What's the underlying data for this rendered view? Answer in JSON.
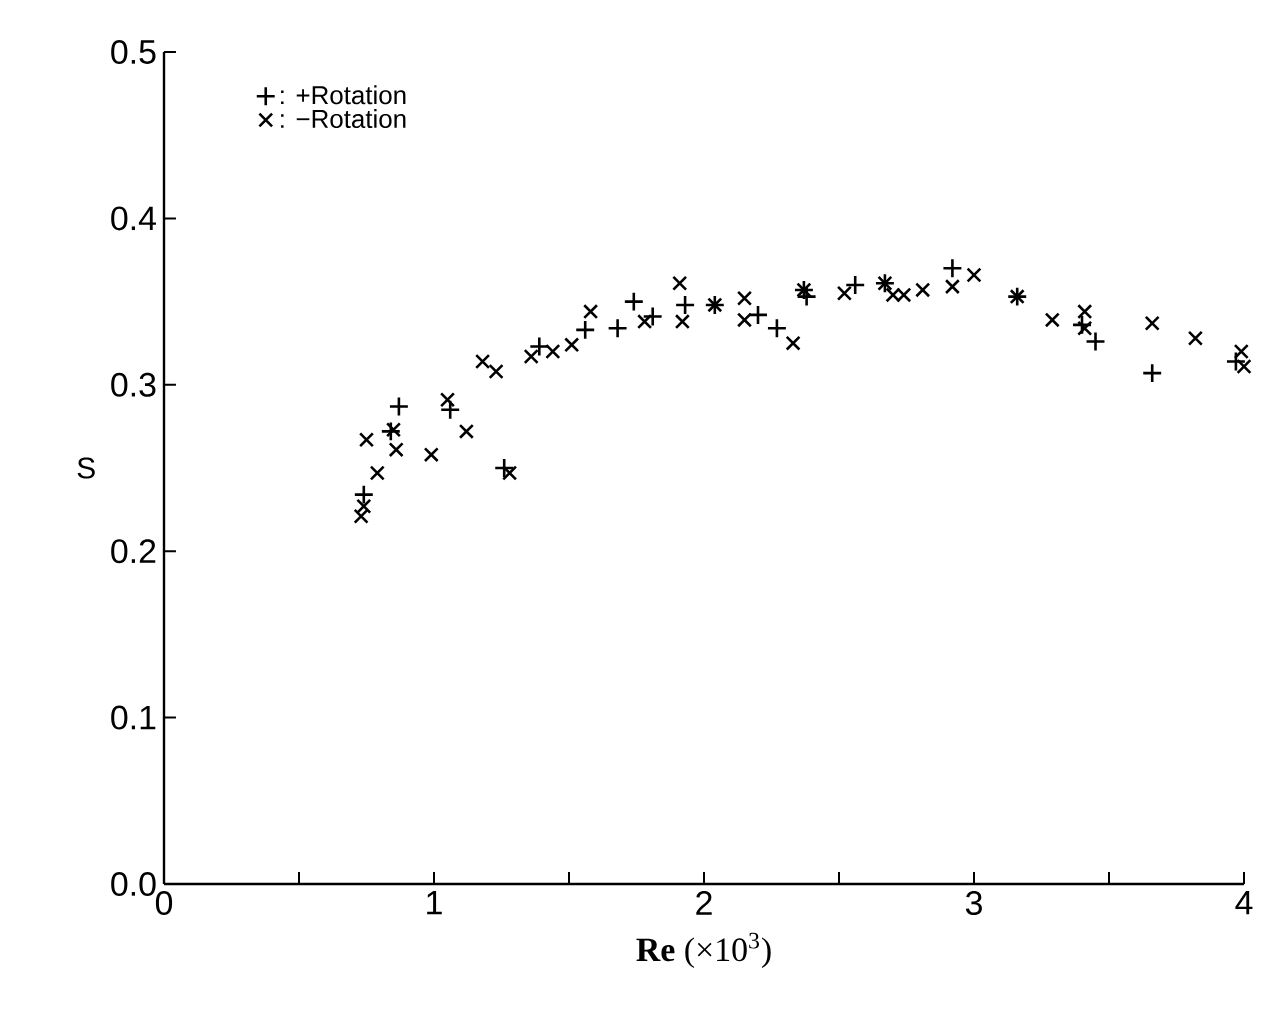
{
  "chart_data": {
    "type": "scatter",
    "xlabel": "**Re** (×10$^{3}$)",
    "ylabel": "S",
    "xlim": [
      0,
      4
    ],
    "ylim": [
      0,
      0.5
    ],
    "xticks": [
      0,
      {
        "value": 0.5,
        "label": null
      },
      1,
      {
        "value": 1.5,
        "label": null
      },
      2,
      {
        "value": 2.5,
        "label": null
      },
      3,
      {
        "value": 3.5,
        "label": null
      },
      4
    ],
    "yticks": [
      {
        "value": 0,
        "label": "0.0"
      },
      0.1,
      0.2,
      0.3,
      0.4,
      0.5
    ],
    "grid": false,
    "legend": "top left",
    "series": [
      {
        "name": ":  +Rotation",
        "color": "#000000",
        "marker": "plus",
        "x": [
          0.74,
          0.84,
          0.87,
          1.06,
          1.26,
          1.39,
          1.56,
          1.68,
          1.74,
          1.81,
          1.93,
          2.04,
          2.2,
          2.27,
          2.37,
          2.38,
          2.56,
          2.67,
          2.92,
          3.16,
          3.4,
          3.45,
          3.66,
          3.97
        ],
        "values": [
          0.234,
          0.272,
          0.287,
          0.285,
          0.25,
          0.323,
          0.333,
          0.334,
          0.35,
          0.341,
          0.348,
          0.348,
          0.342,
          0.334,
          0.357,
          0.353,
          0.36,
          0.361,
          0.37,
          0.353,
          0.336,
          0.326,
          0.307,
          0.314
        ]
      },
      {
        "name": ":  −Rotation",
        "color": "#000000",
        "marker": "cross",
        "x": [
          0.73,
          0.74,
          0.75,
          0.79,
          0.85,
          0.86,
          0.99,
          1.05,
          1.12,
          1.18,
          1.23,
          1.28,
          1.36,
          1.44,
          1.51,
          1.58,
          1.78,
          1.91,
          1.92,
          2.04,
          2.15,
          2.15,
          2.33,
          2.37,
          2.52,
          2.67,
          2.7,
          2.74,
          2.81,
          2.92,
          3.0,
          3.16,
          3.29,
          3.41,
          3.41,
          3.66,
          3.82,
          3.99,
          4.0
        ],
        "values": [
          0.221,
          0.227,
          0.267,
          0.247,
          0.273,
          0.261,
          0.258,
          0.291,
          0.272,
          0.314,
          0.308,
          0.247,
          0.317,
          0.32,
          0.324,
          0.344,
          0.338,
          0.361,
          0.338,
          0.348,
          0.352,
          0.339,
          0.325,
          0.357,
          0.355,
          0.361,
          0.354,
          0.354,
          0.357,
          0.359,
          0.366,
          0.353,
          0.339,
          0.344,
          0.334,
          0.337,
          0.328,
          0.32,
          0.311
        ]
      }
    ]
  }
}
